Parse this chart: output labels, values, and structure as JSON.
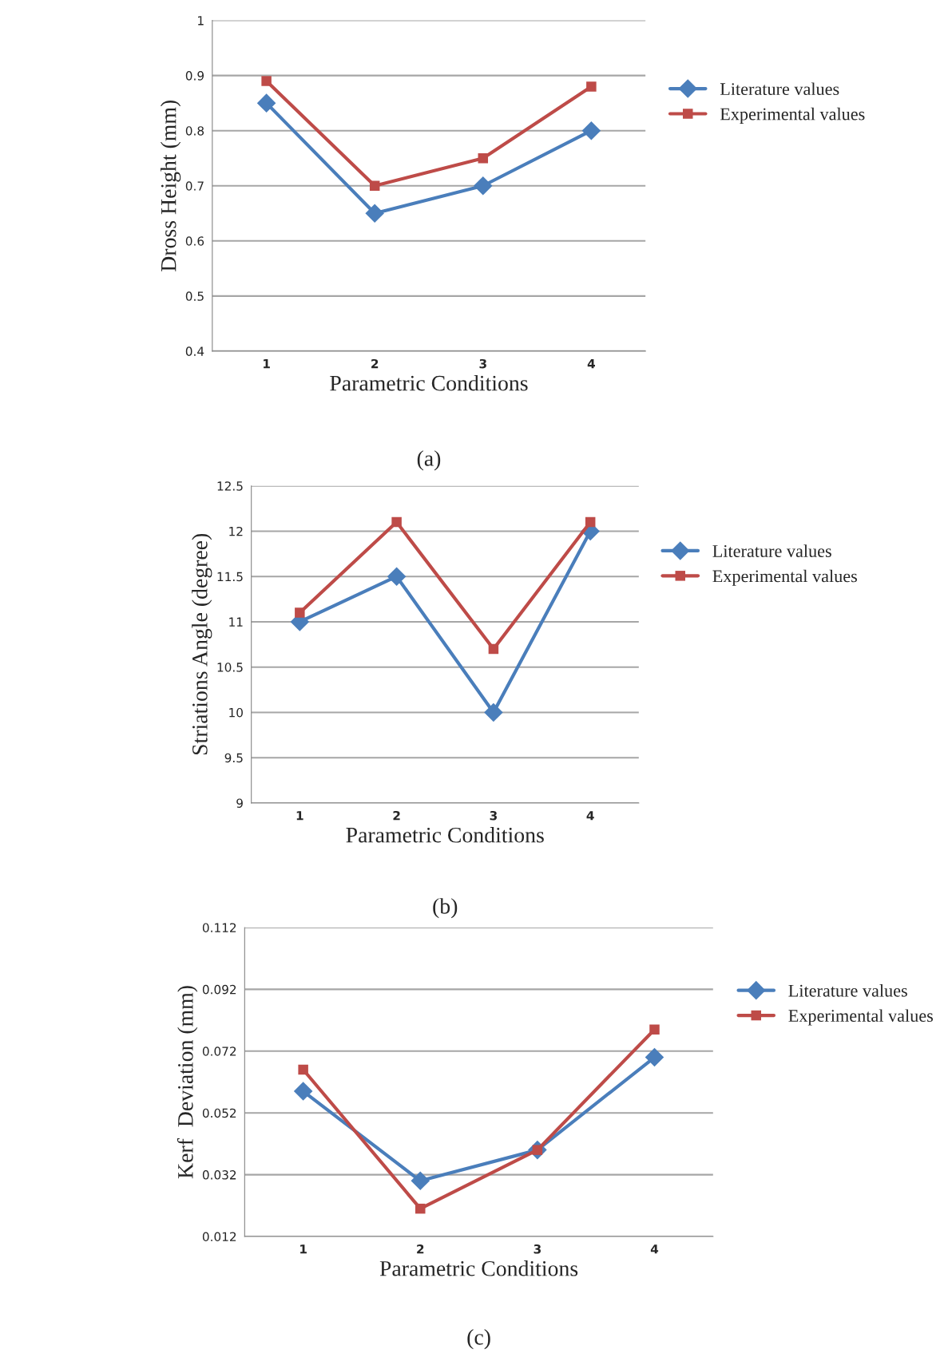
{
  "chart_data": [
    {
      "type": "line",
      "xlabel": "Parametric Conditions",
      "ylabel": "Dross Height (mm)",
      "categories": [
        "1",
        "2",
        "3",
        "4"
      ],
      "series": [
        {
          "name": "Literature values",
          "color": "#4a7ebb",
          "marker": "diamond",
          "values": [
            0.85,
            0.65,
            0.7,
            0.8
          ]
        },
        {
          "name": "Experimental values",
          "color": "#be4b48",
          "marker": "square",
          "values": [
            0.89,
            0.7,
            0.75,
            0.88
          ]
        }
      ],
      "ylim": [
        0.4,
        1
      ],
      "yticks": [
        0.4,
        0.5,
        0.6,
        0.7,
        0.8,
        0.9,
        1
      ],
      "grid": "y",
      "legend": "right",
      "annotations": [
        "(a)"
      ]
    },
    {
      "type": "line",
      "xlabel": "Parametric Conditions",
      "ylabel": "Striations Angle (degree)",
      "categories": [
        "1",
        "2",
        "3",
        "4"
      ],
      "series": [
        {
          "name": "Literature values",
          "color": "#4a7ebb",
          "marker": "diamond",
          "values": [
            11,
            11.5,
            10,
            12
          ]
        },
        {
          "name": "Experimental values",
          "color": "#be4b48",
          "marker": "square",
          "values": [
            11.1,
            12.1,
            10.7,
            12.1
          ]
        }
      ],
      "ylim": [
        9,
        12.5
      ],
      "yticks": [
        9,
        9.5,
        10,
        10.5,
        11,
        11.5,
        12,
        12.5
      ],
      "grid": "y",
      "legend": "right",
      "annotations": [
        "(b)"
      ]
    },
    {
      "type": "line",
      "xlabel": "Parametric Conditions",
      "ylabel": "Kerf  Deviation (mm)",
      "categories": [
        "1",
        "2",
        "3",
        "4"
      ],
      "series": [
        {
          "name": "Literature values",
          "color": "#4a7ebb",
          "marker": "diamond",
          "values": [
            0.059,
            0.03,
            0.04,
            0.07
          ]
        },
        {
          "name": "Experimental values",
          "color": "#be4b48",
          "marker": "square",
          "values": [
            0.066,
            0.021,
            0.04,
            0.079
          ]
        }
      ],
      "ylim": [
        0.012,
        0.112
      ],
      "yticks": [
        0.012,
        0.032,
        0.052,
        0.072,
        0.092,
        0.112
      ],
      "grid": "y",
      "legend": "right",
      "annotations": [
        "(c)"
      ]
    }
  ]
}
